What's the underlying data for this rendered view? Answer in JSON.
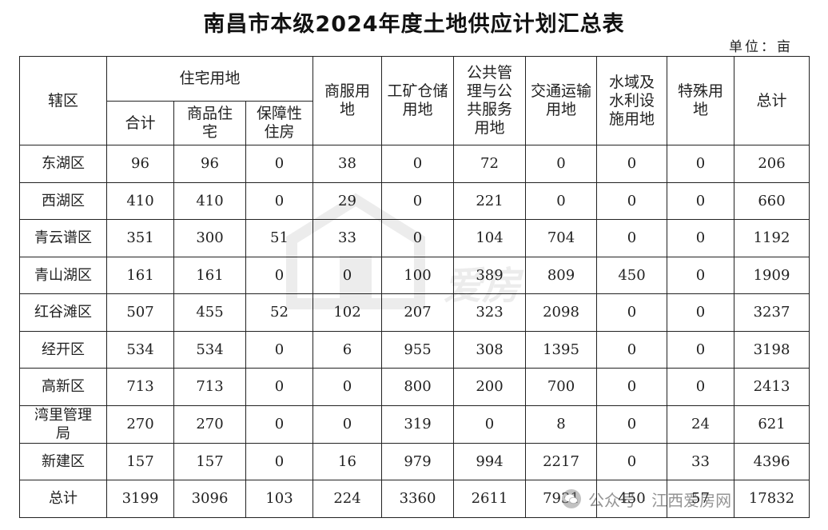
{
  "title": "南昌市本级2024年度土地供应计划汇总表",
  "unit": "单位：亩",
  "headers": {
    "district": "辖区",
    "residential": "住宅用地",
    "res_total": "合计",
    "res_commercial": "商品住宅",
    "res_affordable": "保障性住房",
    "commercial": "商服用地",
    "industrial": "工矿仓储用地",
    "public": "公共管理与公共服务用地",
    "transport": "交通运输用地",
    "water": "水域及水利设施用地",
    "special": "特殊用地",
    "total": "总计"
  },
  "rows": [
    [
      "东湖区",
      "96",
      "96",
      "0",
      "38",
      "0",
      "72",
      "0",
      "0",
      "0",
      "206"
    ],
    [
      "西湖区",
      "410",
      "410",
      "0",
      "29",
      "0",
      "221",
      "0",
      "0",
      "0",
      "660"
    ],
    [
      "青云谱区",
      "351",
      "300",
      "51",
      "33",
      "0",
      "104",
      "704",
      "0",
      "0",
      "1192"
    ],
    [
      "青山湖区",
      "161",
      "161",
      "0",
      "0",
      "100",
      "389",
      "809",
      "450",
      "0",
      "1909"
    ],
    [
      "红谷滩区",
      "507",
      "455",
      "52",
      "102",
      "207",
      "323",
      "2098",
      "0",
      "0",
      "3237"
    ],
    [
      "经开区",
      "534",
      "534",
      "0",
      "6",
      "955",
      "308",
      "1395",
      "0",
      "0",
      "3198"
    ],
    [
      "高新区",
      "713",
      "713",
      "0",
      "0",
      "800",
      "200",
      "700",
      "0",
      "0",
      "2413"
    ],
    [
      "湾里管理局",
      "270",
      "270",
      "0",
      "0",
      "319",
      "0",
      "8",
      "0",
      "24",
      "621"
    ],
    [
      "新建区",
      "157",
      "157",
      "0",
      "16",
      "979",
      "994",
      "2217",
      "0",
      "33",
      "4396"
    ],
    [
      "总计",
      "3199",
      "3096",
      "103",
      "224",
      "3360",
      "2611",
      "7931",
      "450",
      "57",
      "17832"
    ]
  ],
  "watermark": "爱房",
  "footer": "公众号 · 江西爱房网",
  "icons": {
    "footer": "wechat-icon",
    "watermark": "house-logo-icon"
  }
}
